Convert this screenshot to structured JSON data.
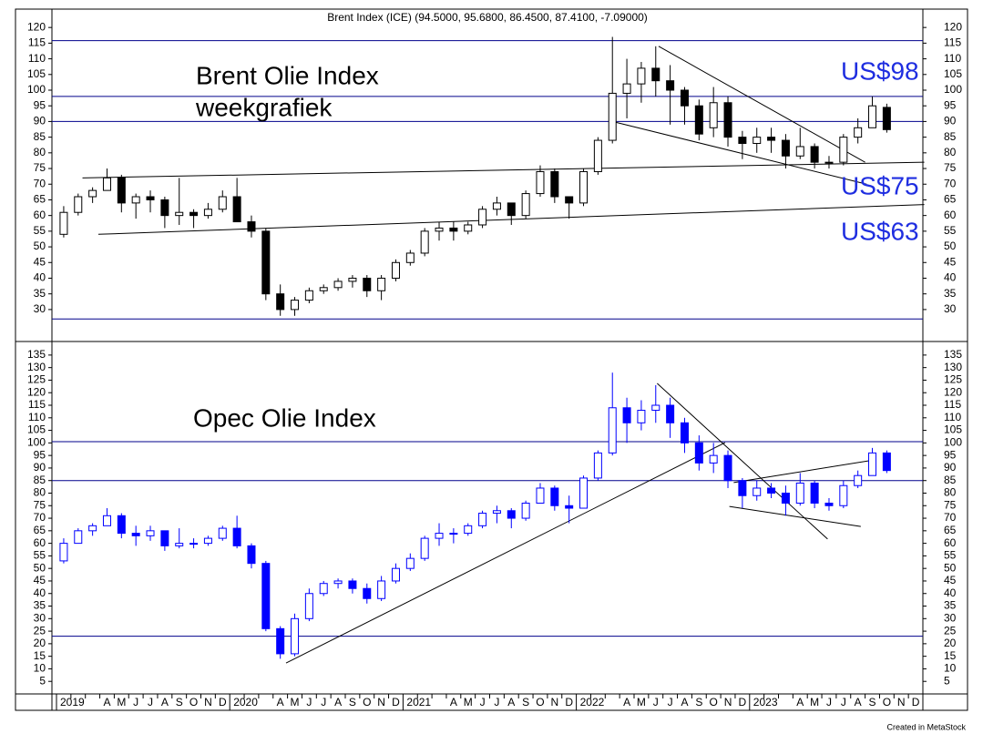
{
  "header": "Brent Index (ICE) (94.5000, 95.6800, 86.4500, 87.4100, -7.09000)",
  "footer": "Created in MetaStock",
  "chart_data": [
    {
      "type": "candlestick",
      "color": "#000000",
      "annotations": [
        "Brent Olie Index",
        "weekgrafiek",
        "US$98",
        "US$75",
        "US$63"
      ],
      "open": [
        54,
        61,
        66,
        68,
        72,
        64,
        66,
        65,
        60,
        61,
        60,
        62,
        66,
        58,
        55,
        35,
        30,
        33,
        36,
        37,
        39,
        40,
        36,
        40,
        45,
        48,
        55,
        56,
        55,
        57,
        62,
        64,
        60,
        67,
        74,
        66,
        64,
        74,
        84,
        99,
        102,
        107,
        103,
        100,
        95,
        88,
        96,
        85,
        83,
        85,
        84,
        79,
        82,
        77,
        77,
        85,
        88,
        94.5,
        null,
        null
      ],
      "high": [
        63,
        67,
        69,
        75,
        73,
        67,
        68,
        66,
        72,
        62,
        64,
        68,
        72,
        60,
        56,
        38,
        34,
        37,
        38,
        40,
        41,
        41,
        41,
        46,
        49,
        56,
        58,
        58,
        58,
        63,
        66,
        64,
        68,
        76,
        75,
        66,
        75,
        85,
        117,
        110,
        109,
        114,
        108,
        101,
        97,
        101,
        98,
        87,
        88,
        88,
        86,
        88,
        83,
        79,
        86,
        91,
        98,
        95.68,
        null,
        null
      ],
      "low": [
        53,
        60,
        64,
        68,
        61,
        59,
        61,
        56,
        57,
        56,
        59,
        61,
        58,
        53,
        33,
        28,
        28,
        32,
        35,
        36,
        37,
        34,
        33,
        39,
        44,
        47,
        52,
        52,
        54,
        56,
        60,
        57,
        59,
        66,
        64,
        59,
        63,
        73,
        83,
        91,
        96,
        98,
        89,
        89,
        84,
        85,
        82,
        78,
        80,
        80,
        75,
        78,
        75,
        75,
        76,
        83,
        88,
        86.45,
        null,
        null
      ],
      "close": [
        61,
        66,
        68,
        72,
        64,
        66,
        65,
        60,
        61,
        60,
        62,
        66,
        58,
        55,
        35,
        30,
        33,
        36,
        37,
        39,
        40,
        36,
        40,
        45,
        48,
        55,
        56,
        55,
        57,
        62,
        64,
        60,
        67,
        74,
        66,
        64,
        74,
        84,
        99,
        102,
        107,
        103,
        100,
        95,
        86,
        96,
        85,
        83,
        85,
        84,
        79,
        82,
        77,
        77,
        85,
        88,
        95,
        87.41,
        null,
        null
      ],
      "ylim": [
        19.8,
        124.7
      ],
      "yticks": [
        30,
        35,
        40,
        45,
        50,
        55,
        60,
        65,
        70,
        75,
        80,
        85,
        90,
        95,
        100,
        105,
        110,
        115,
        120
      ],
      "levels": [
        115.8,
        98,
        90,
        27
      ],
      "trendlines": [
        {
          "x": [
            1.3,
            59.6
          ],
          "y": [
            72,
            77
          ]
        },
        {
          "x": [
            2.4,
            59.6
          ],
          "y": [
            54,
            63.5
          ]
        },
        {
          "x": [
            41.2,
            55.5
          ],
          "y": [
            114,
            77
          ]
        },
        {
          "x": [
            38.0,
            55.6
          ],
          "y": [
            90,
            70
          ]
        }
      ]
    },
    {
      "type": "candlestick",
      "color": "#0000ff",
      "annotations": [
        "Opec Olie Index"
      ],
      "categories": [
        "2019",
        null,
        null,
        "A",
        "M",
        "J",
        "J",
        "A",
        "S",
        "O",
        "N",
        "D",
        "2020",
        null,
        null,
        "A",
        "M",
        "J",
        "J",
        "A",
        "S",
        "O",
        "N",
        "D",
        "2021",
        null,
        null,
        "A",
        "M",
        "J",
        "J",
        "A",
        "S",
        "O",
        "N",
        "D",
        "2022",
        null,
        null,
        "A",
        "M",
        "J",
        "J",
        "A",
        "S",
        "O",
        "N",
        "D",
        "2023",
        null,
        null,
        "A",
        "M",
        "J",
        "J",
        "A",
        "S",
        "O",
        "N",
        "D"
      ],
      "open": [
        53,
        60,
        65,
        67,
        71,
        64,
        63,
        65,
        59,
        60,
        60,
        62,
        66,
        59,
        52,
        26,
        16,
        30,
        40,
        44,
        45,
        42,
        38,
        45,
        50,
        54,
        62,
        64,
        64,
        67,
        72,
        73,
        70,
        76,
        82,
        75,
        74,
        86,
        96,
        114,
        108,
        113,
        115,
        108,
        100,
        92,
        95,
        85,
        79,
        82,
        80,
        76,
        84,
        76,
        75,
        83,
        87,
        96,
        null,
        null
      ],
      "high": [
        62,
        66,
        68,
        74,
        72,
        67,
        67,
        65,
        66,
        62,
        63,
        67,
        71,
        60,
        53,
        27,
        32,
        42,
        45,
        46,
        46,
        44,
        47,
        52,
        56,
        63,
        68,
        66,
        68,
        73,
        75,
        74,
        77,
        84,
        83,
        79,
        87,
        97,
        128,
        118,
        117,
        123,
        118,
        110,
        103,
        100,
        97,
        86,
        85,
        84,
        83,
        88,
        85,
        78,
        85,
        89,
        98,
        97,
        null,
        null
      ],
      "low": [
        52,
        60,
        63,
        67,
        62,
        59,
        61,
        57,
        58,
        58,
        59,
        61,
        58,
        50,
        25,
        14,
        15,
        29,
        39,
        42,
        40,
        36,
        37,
        44,
        49,
        53,
        59,
        60,
        63,
        66,
        68,
        66,
        69,
        76,
        73,
        68,
        74,
        85,
        95,
        100,
        105,
        108,
        102,
        96,
        89,
        88,
        82,
        74,
        77,
        78,
        71,
        75,
        74,
        73,
        74,
        82,
        87,
        88,
        null,
        null
      ],
      "close": [
        60,
        65,
        67,
        71,
        64,
        63,
        65,
        59,
        60,
        60,
        62,
        66,
        59,
        52,
        26,
        16,
        30,
        40,
        44,
        45,
        42,
        38,
        45,
        50,
        54,
        62,
        64,
        64,
        67,
        72,
        73,
        70,
        76,
        82,
        75,
        74,
        86,
        96,
        114,
        108,
        113,
        115,
        108,
        100,
        92,
        95,
        85,
        79,
        82,
        80,
        76,
        84,
        76,
        75,
        83,
        87,
        96,
        89,
        null,
        null
      ],
      "ylim": [
        0,
        140.4
      ],
      "yticks": [
        5,
        10,
        15,
        20,
        25,
        30,
        35,
        40,
        45,
        50,
        55,
        60,
        65,
        70,
        75,
        80,
        85,
        90,
        95,
        100,
        105,
        110,
        115,
        120,
        125,
        130,
        135
      ],
      "levels": [
        100.5,
        85,
        23
      ],
      "trendlines": [
        {
          "x": [
            15.4,
            45.8
          ],
          "y": [
            12.3,
            100.1
          ]
        },
        {
          "x": [
            41.1,
            52.9
          ],
          "y": [
            123.7,
            61.7
          ]
        },
        {
          "x": [
            46.4,
            56.1
          ],
          "y": [
            84.2,
            93.2
          ]
        },
        {
          "x": [
            46.1,
            55.2
          ],
          "y": [
            74.7,
            66.7
          ]
        }
      ]
    }
  ]
}
